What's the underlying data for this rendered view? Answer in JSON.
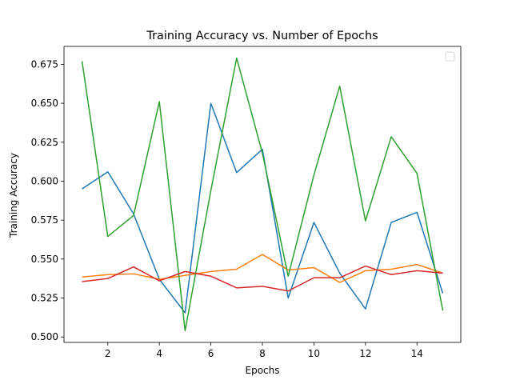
{
  "chart_data": {
    "type": "line",
    "title": "Training Accuracy vs. Number of Epochs",
    "xlabel": "Epochs",
    "ylabel": "Training Accuracy",
    "xlim": [
      0.3,
      15.7
    ],
    "ylim": [
      0.4965,
      0.6865
    ],
    "xticks": [
      2,
      4,
      6,
      8,
      10,
      12,
      14
    ],
    "yticks": [
      0.5,
      0.525,
      0.55,
      0.575,
      0.6,
      0.625,
      0.65,
      0.675
    ],
    "ytick_labels": [
      "0.500",
      "0.525",
      "0.550",
      "0.575",
      "0.600",
      "0.625",
      "0.650",
      "0.675"
    ],
    "grid": false,
    "legend": "upper right (empty)",
    "x": [
      1,
      2,
      3,
      4,
      5,
      6,
      7,
      8,
      9,
      10,
      11,
      12,
      13,
      14,
      15
    ],
    "series": [
      {
        "color": "#1f77b4",
        "values": [
          0.595,
          0.606,
          0.579,
          0.537,
          0.5155,
          0.65,
          0.6055,
          0.6205,
          0.525,
          0.5735,
          0.541,
          0.518,
          0.5735,
          0.58,
          0.528
        ]
      },
      {
        "color": "#ff7f0e",
        "values": [
          0.5385,
          0.54,
          0.5405,
          0.537,
          0.5395,
          0.542,
          0.5435,
          0.553,
          0.543,
          0.5445,
          0.535,
          0.5425,
          0.5435,
          0.5465,
          0.541
        ]
      },
      {
        "color": "#2ca02c",
        "values": [
          0.677,
          0.5645,
          0.578,
          0.651,
          0.504,
          0.594,
          0.679,
          0.618,
          0.539,
          0.604,
          0.661,
          0.5745,
          0.6285,
          0.605,
          0.517
        ]
      },
      {
        "color": "#d62728",
        "values": [
          0.5355,
          0.5375,
          0.545,
          0.536,
          0.542,
          0.539,
          0.5315,
          0.5325,
          0.5295,
          0.538,
          0.538,
          0.5455,
          0.54,
          0.5425,
          0.541
        ]
      }
    ]
  }
}
